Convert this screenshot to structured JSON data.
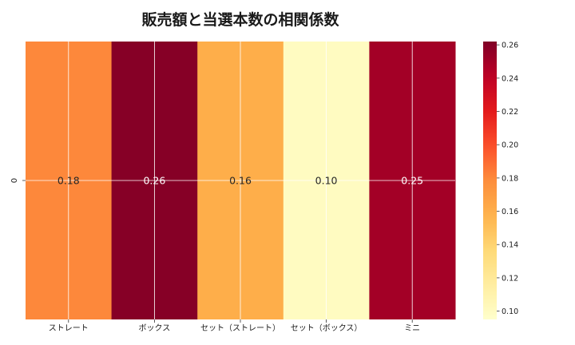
{
  "chart_data": {
    "type": "heatmap",
    "title": "販売額と当選本数の相関係数",
    "x_categories": [
      "ストレート",
      "ボックス",
      "セット（ストレート）",
      "セット（ボックス）",
      "ミニ"
    ],
    "y_categories": [
      "0"
    ],
    "values": [
      [
        0.18,
        0.26,
        0.16,
        0.1,
        0.25
      ]
    ],
    "annotations": [
      "0.18",
      "0.26",
      "0.16",
      "0.10",
      "0.25"
    ],
    "colorscale": "YlOrRd",
    "colorbar": {
      "range": [
        0.095,
        0.262
      ],
      "ticks": [
        "0.10",
        "0.12",
        "0.14",
        "0.16",
        "0.18",
        "0.20",
        "0.22",
        "0.24",
        "0.26"
      ],
      "tick_values": [
        0.1,
        0.12,
        0.14,
        0.16,
        0.18,
        0.2,
        0.22,
        0.24,
        0.26
      ]
    },
    "grid": true
  }
}
